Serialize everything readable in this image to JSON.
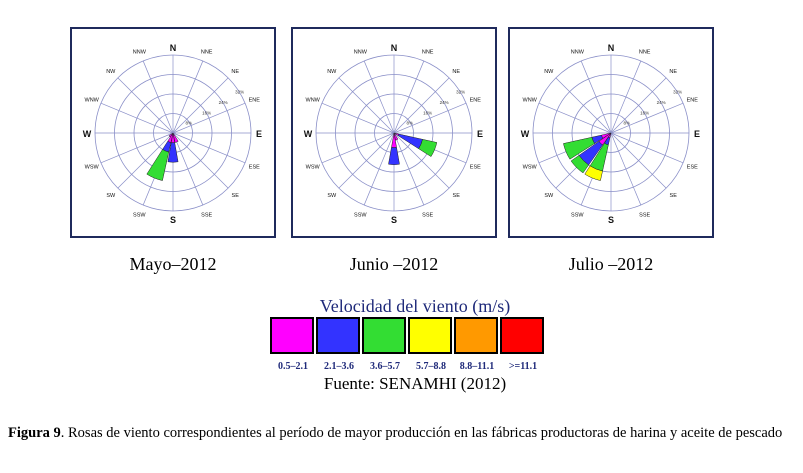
{
  "chart_data": [
    {
      "type": "windrose",
      "title": "Mayo–2012",
      "directions": [
        "N",
        "NNE",
        "NE",
        "ENE",
        "E",
        "ESE",
        "SE",
        "SSE",
        "S",
        "SSW",
        "SW",
        "WSW",
        "W",
        "WNW",
        "NW",
        "NNW"
      ],
      "radial_ticks": [
        "8%",
        "16%",
        "24%",
        "32%"
      ],
      "petals": [
        {
          "direction": "SSW",
          "bins": [
            {
              "speed": "0.5–2.1",
              "percent": 4
            },
            {
              "speed": "2.1–3.6",
              "percent": 8
            },
            {
              "speed": "3.6–5.7",
              "percent": 20
            }
          ]
        },
        {
          "direction": "S",
          "bins": [
            {
              "speed": "0.5–2.1",
              "percent": 4
            },
            {
              "speed": "2.1–3.6",
              "percent": 12
            }
          ]
        },
        {
          "direction": "SSE",
          "bins": [
            {
              "speed": "0.5–2.1",
              "percent": 4
            }
          ]
        },
        {
          "direction": "SW",
          "bins": [
            {
              "speed": "0.5–2.1",
              "percent": 2
            }
          ]
        }
      ]
    },
    {
      "type": "windrose",
      "title": "Junio –2012",
      "directions": [
        "N",
        "NNE",
        "NE",
        "ENE",
        "E",
        "ESE",
        "SE",
        "SSE",
        "S",
        "SSW",
        "SW",
        "WSW",
        "W",
        "WNW",
        "NW",
        "NNW"
      ],
      "radial_ticks": [
        "8%",
        "16%",
        "24%",
        "32%"
      ],
      "petals": [
        {
          "direction": "ESE",
          "bins": [
            {
              "speed": "0.5–2.1",
              "percent": 2
            },
            {
              "speed": "2.1–3.6",
              "percent": 12
            },
            {
              "speed": "3.6–5.7",
              "percent": 18
            }
          ]
        },
        {
          "direction": "S",
          "bins": [
            {
              "speed": "0.5–2.1",
              "percent": 6
            },
            {
              "speed": "2.1–3.6",
              "percent": 13
            }
          ]
        },
        {
          "direction": "SSE",
          "bins": [
            {
              "speed": "0.5–2.1",
              "percent": 3
            }
          ]
        }
      ]
    },
    {
      "type": "windrose",
      "title": "Julio –2012",
      "directions": [
        "N",
        "NNE",
        "NE",
        "ENE",
        "E",
        "ESE",
        "SE",
        "SSE",
        "S",
        "SSW",
        "SW",
        "WSW",
        "W",
        "WNW",
        "NW",
        "NNW"
      ],
      "radial_ticks": [
        "8%",
        "16%",
        "24%",
        "32%"
      ],
      "petals": [
        {
          "direction": "SW",
          "bins": [
            {
              "speed": "0.5–2.1",
              "percent": 6
            },
            {
              "speed": "2.1–3.6",
              "percent": 16
            },
            {
              "speed": "3.6–5.7",
              "percent": 20
            }
          ]
        },
        {
          "direction": "WSW",
          "bins": [
            {
              "speed": "0.5–2.1",
              "percent": 4
            },
            {
              "speed": "2.1–3.6",
              "percent": 8
            },
            {
              "speed": "3.6–5.7",
              "percent": 20
            }
          ]
        },
        {
          "direction": "SSW",
          "bins": [
            {
              "speed": "0.5–2.1",
              "percent": 2
            },
            {
              "speed": "2.1–3.6",
              "percent": 5
            },
            {
              "speed": "3.6–5.7",
              "percent": 16
            },
            {
              "speed": "5.7–8.8",
              "percent": 20
            }
          ]
        }
      ]
    }
  ],
  "legend": {
    "title": "Velocidad del viento (m/s)",
    "items": [
      {
        "label": "0.5–2.1",
        "color": "#ff00ff"
      },
      {
        "label": "2.1–3.6",
        "color": "#3333ff"
      },
      {
        "label": "3.6–5.7",
        "color": "#33dd33"
      },
      {
        "label": "5.7–8.8",
        "color": "#ffff00"
      },
      {
        "label": "8.8–11.1",
        "color": "#ff9900"
      },
      {
        "label": ">=11.1",
        "color": "#ff0000"
      }
    ]
  },
  "source": "Fuente: SENAMHI (2012)",
  "caption": {
    "label": "Figura 9",
    "text": ". Rosas de viento correspondientes al período de mayor producción en las fábricas productoras de harina y aceite de pescado"
  }
}
